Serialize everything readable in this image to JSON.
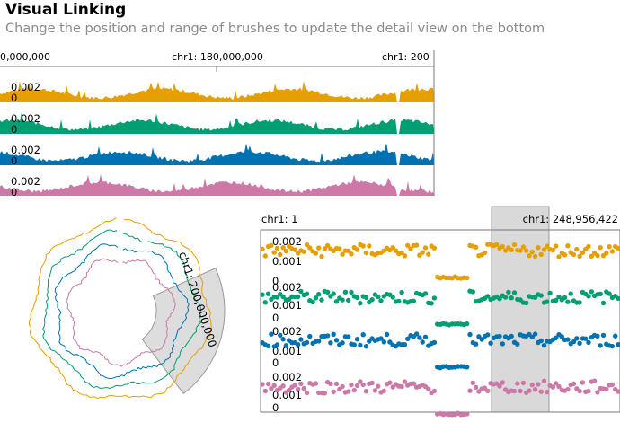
{
  "header": {
    "title": "Visual Linking",
    "subtitle": "Change the position and range of brushes to update the detail view on the bottom"
  },
  "colors": {
    "tracks": [
      "#e69f00",
      "#009e73",
      "#0072b2",
      "#cc79a7"
    ],
    "brush_fill": "#d9d9d9",
    "brush_stroke": "#999999"
  },
  "top_view": {
    "axis_labels": [
      "chr1: 180,000,000",
      "chr1: 200",
      "0,000,000"
    ],
    "tracks": [
      {
        "y_max": "0.002",
        "y_min": "0"
      },
      {
        "y_max": "0.002",
        "y_min": "0"
      },
      {
        "y_max": "0.002",
        "y_min": "0"
      },
      {
        "y_max": "0.002",
        "y_min": "0"
      }
    ]
  },
  "circular_view": {
    "brush_label": "chr1: 200,000,000"
  },
  "detail_view": {
    "start_label": "chr1: 1",
    "end_label": "chr1: 248,956,422",
    "tracks": [
      {
        "ticks": [
          "0.002",
          "0.001",
          "0"
        ]
      },
      {
        "ticks": [
          "0.002",
          "0.001",
          "0"
        ]
      },
      {
        "ticks": [
          "0.002",
          "0.001",
          "0"
        ]
      },
      {
        "ticks": [
          "0.002",
          "0.001",
          "0"
        ]
      }
    ]
  }
}
